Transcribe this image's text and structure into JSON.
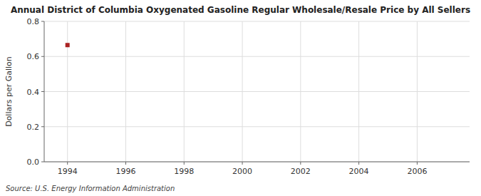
{
  "chart_data": {
    "type": "scatter",
    "title": "Annual District of Columbia Oxygenated Gasoline Regular Wholesale/Resale Price by All Sellers",
    "y_label": "Dollars per Gallon",
    "source": "Source: U.S. Energy Information Administration",
    "x": [
      1994
    ],
    "values": [
      0.665
    ],
    "color": "#aa2222",
    "marker": "square",
    "xlim": [
      1993.2,
      2007.8
    ],
    "ylim": [
      0.0,
      0.8
    ],
    "xticks": [
      1994,
      1996,
      1998,
      2000,
      2002,
      2004,
      2006
    ],
    "yticks": [
      {
        "value": 0.0,
        "label": "0.0"
      },
      0.2,
      0.4,
      0.6,
      0.8
    ],
    "grid": true
  }
}
